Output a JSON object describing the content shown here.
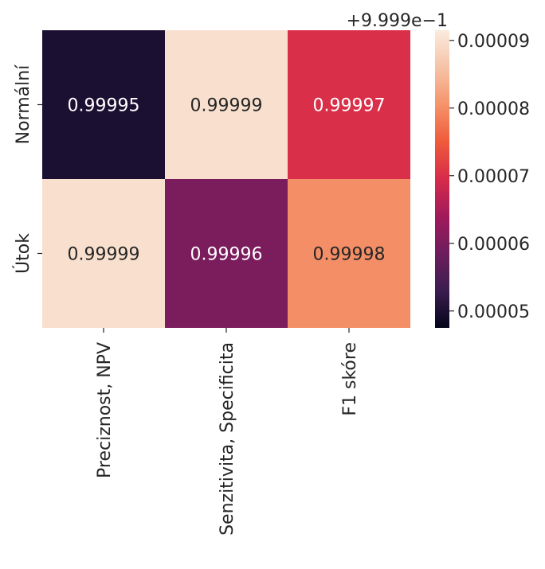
{
  "chart_data": {
    "type": "heatmap",
    "row_labels": [
      "Normální",
      "Útok"
    ],
    "col_labels": [
      "Preciznost, NPV",
      "Senzitivita, Specificita",
      "F1 skóre"
    ],
    "values": [
      [
        0.99995,
        0.99999,
        0.99997
      ],
      [
        0.99999,
        0.99996,
        0.99998
      ]
    ],
    "cell_labels": [
      [
        "0.99995",
        "0.99999",
        "0.99997"
      ],
      [
        "0.99999",
        "0.99996",
        "0.99998"
      ]
    ],
    "colorbar": {
      "offset_label": "+9.999e−1",
      "ticks": [
        "0.00009",
        "0.00008",
        "0.00007",
        "0.00006",
        "0.00005"
      ],
      "tick_values": [
        9e-05,
        8e-05,
        7e-05,
        6e-05,
        5e-05
      ],
      "range": [
        4.75e-05,
        9.15e-05
      ],
      "offset": 0.9999
    },
    "colormap": "rocket",
    "colorbar_stops": [
      "#03051a",
      "#3b1d4f",
      "#6d1d5e",
      "#a11a5b",
      "#d72b4a",
      "#ef5a3a",
      "#f5936a",
      "#f6c3a7",
      "#faebdd"
    ]
  }
}
